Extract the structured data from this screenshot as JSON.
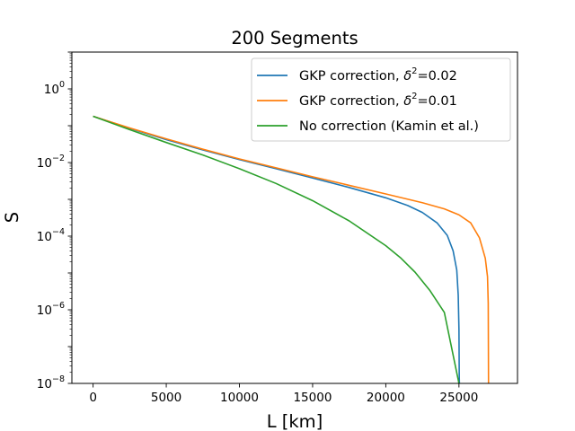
{
  "chart_data": {
    "type": "line",
    "title": "200 Segments",
    "xlabel": "L [km]",
    "ylabel": "S",
    "xlim": [
      -1450,
      29000
    ],
    "ylim_log10": [
      -8,
      1
    ],
    "y_scale": "log",
    "grid": false,
    "legend_position": "top-right",
    "x_ticks": [
      {
        "value": 0,
        "label": "0"
      },
      {
        "value": 5000,
        "label": "5000"
      },
      {
        "value": 10000,
        "label": "10000"
      },
      {
        "value": 15000,
        "label": "15000"
      },
      {
        "value": 20000,
        "label": "20000"
      },
      {
        "value": 25000,
        "label": "25000"
      }
    ],
    "y_ticks": [
      {
        "exp": 0,
        "base": "10",
        "sup": "0"
      },
      {
        "exp": -2,
        "base": "10",
        "sup": "−2"
      },
      {
        "exp": -4,
        "base": "10",
        "sup": "−4"
      },
      {
        "exp": -6,
        "base": "10",
        "sup": "−6"
      },
      {
        "exp": -8,
        "base": "10",
        "sup": "−8"
      }
    ],
    "series": [
      {
        "name_prefix": "GKP correction, ",
        "name_symbol": "δ",
        "name_sup": "2",
        "name_suffix": "=0.02",
        "color": "#1f77b4",
        "x": [
          0,
          2500,
          5000,
          7500,
          10000,
          12500,
          15000,
          17500,
          20000,
          21500,
          22500,
          23500,
          24200,
          24600,
          24850,
          24950,
          25000,
          25020,
          25030
        ],
        "y": [
          0.18,
          0.085,
          0.042,
          0.022,
          0.012,
          0.0068,
          0.0038,
          0.0021,
          0.0011,
          0.00068,
          0.00044,
          0.00023,
          0.000105,
          4e-05,
          1.2e-05,
          2.5e-06,
          3e-07,
          1.5e-08,
          1e-08
        ]
      },
      {
        "name_prefix": "GKP correction, ",
        "name_symbol": "δ",
        "name_sup": "2",
        "name_suffix": "=0.01",
        "color": "#ff7f0e",
        "x": [
          0,
          2500,
          5000,
          7500,
          10000,
          12500,
          15000,
          17500,
          20000,
          22500,
          24000,
          25000,
          25800,
          26400,
          26800,
          26950,
          27000,
          27020
        ],
        "y": [
          0.18,
          0.087,
          0.044,
          0.023,
          0.0125,
          0.0072,
          0.0041,
          0.0024,
          0.0014,
          0.00081,
          0.00055,
          0.00038,
          0.00023,
          9e-05,
          2.5e-05,
          8e-06,
          1.5e-06,
          1e-08
        ]
      },
      {
        "name": "No correction (Kamin et al.)",
        "color": "#2ca02c",
        "x": [
          0,
          2500,
          5000,
          7500,
          10000,
          12500,
          15000,
          17500,
          20000,
          21000,
          22000,
          23000,
          24000,
          25000
        ],
        "y": [
          0.18,
          0.078,
          0.035,
          0.016,
          0.0068,
          0.0027,
          0.00092,
          0.00026,
          5.5e-05,
          2.6e-05,
          1.05e-05,
          3.4e-06,
          8.5e-07,
          1e-08
        ]
      }
    ]
  }
}
